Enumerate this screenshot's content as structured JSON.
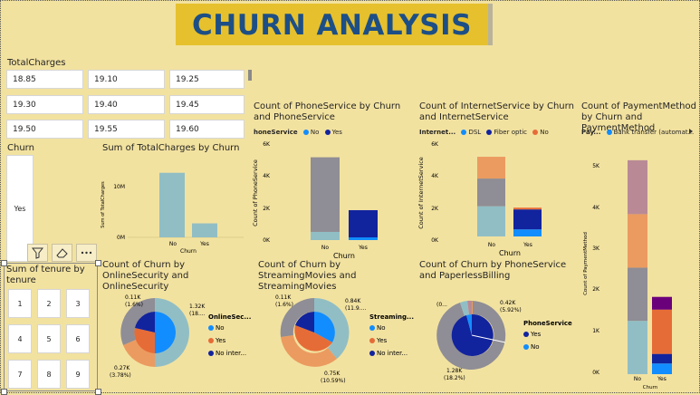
{
  "header": {
    "title": "CHURN ANALYSIS"
  },
  "colors": {
    "teal": "#91bec5",
    "gray": "#8f8d95",
    "orange": "#eb9b60",
    "mauve": "#b98a96",
    "navy": "#12239e",
    "blue": "#118dff",
    "deep_orange": "#e66c37",
    "purple": "#6b007b",
    "title_bg": "#e6c12d",
    "title_fg": "#1d4f86"
  },
  "total_charges": {
    "label": "TotalCharges",
    "values": [
      "18.85",
      "19.10",
      "19.25",
      "19.30",
      "19.40",
      "19.45",
      "19.50",
      "19.55",
      "19.60"
    ]
  },
  "churn_slicer": {
    "label": "Churn",
    "value": "Yes"
  },
  "tenure": {
    "label": "Sum of tenure by tenure",
    "values": [
      "1",
      "2",
      "3",
      "4",
      "5",
      "6",
      "7",
      "8",
      "9"
    ]
  },
  "charts": {
    "sum_charges": {
      "title": "Sum of TotalCharges by Churn",
      "chart_data": {
        "type": "bar",
        "categories": [
          "No",
          "Yes"
        ],
        "values": [
          13200000,
          2860000
        ],
        "xlabel": "Churn",
        "ylabel": "Sum of TotalCharges",
        "yticks": [
          "0M",
          "10M"
        ],
        "ylim": [
          0,
          15000000
        ]
      }
    },
    "phone_service": {
      "title": "Count of PhoneService by Churn and PhoneService",
      "legend_title": "honeService",
      "legend": [
        "No",
        "Yes"
      ],
      "chart_data": {
        "type": "bar",
        "stacked": true,
        "categories": [
          "No",
          "Yes"
        ],
        "series": [
          {
            "name": "No",
            "values": [
              512,
              170
            ]
          },
          {
            "name": "Yes",
            "values": [
              4662,
              1699
            ]
          }
        ],
        "xlabel": "Churn",
        "ylabel": "Count of PhoneService",
        "yticks": [
          "0K",
          "2K",
          "4K",
          "6K"
        ],
        "ylim": [
          0,
          6000
        ]
      }
    },
    "internet_service": {
      "title": "Count of InternetService by Churn and InternetService",
      "legend_title": "Internet...",
      "legend": [
        "DSL",
        "Fiber optic",
        "No"
      ],
      "chart_data": {
        "type": "bar",
        "stacked": true,
        "categories": [
          "No",
          "Yes"
        ],
        "series": [
          {
            "name": "DSL",
            "values": [
              1962,
              459
            ]
          },
          {
            "name": "Fiber optic",
            "values": [
              1799,
              1297
            ]
          },
          {
            "name": "No",
            "values": [
              1413,
              113
            ]
          }
        ],
        "xlabel": "Churn",
        "ylabel": "Count of InternetService",
        "yticks": [
          "0K",
          "2K",
          "4K",
          "6K"
        ],
        "ylim": [
          0,
          6000
        ]
      }
    },
    "payment_method": {
      "title": "Count of PaymentMethod by Churn and PaymentMethod",
      "legend_title": "Pay...",
      "legend": [
        "Bank transfer (automat..."
      ],
      "chart_data": {
        "type": "bar",
        "stacked": true,
        "categories": [
          "No",
          "Yes"
        ],
        "series": [
          {
            "name": "Bank transfer",
            "values": [
              1290,
              258
            ]
          },
          {
            "name": "Credit card",
            "values": [
              1286,
              232
            ]
          },
          {
            "name": "Electronic check",
            "values": [
              1294,
              1071
            ]
          },
          {
            "name": "Mailed check",
            "values": [
              1304,
              308
            ]
          }
        ],
        "xlabel": "Churn",
        "ylabel": "Count of PaymentMethod",
        "yticks": [
          "0K",
          "1K",
          "2K",
          "3K",
          "4K",
          "5K"
        ],
        "ylim": [
          0,
          5500
        ]
      }
    },
    "online_security": {
      "title": "Count of Churn by OnlineSecurity and OnlineSecurity",
      "legend_title": "OnlineSec...",
      "legend": [
        "No",
        "Yes",
        "No inter..."
      ],
      "labels": [
        {
          "value": "0.11K",
          "pct": "(1.6%)"
        },
        {
          "value": "1.32K",
          "pct": "(18...."
        },
        {
          "value": "0.27K",
          "pct": "(3.78%)"
        }
      ]
    },
    "streaming_movies": {
      "title": "Count of Churn by StreamingMovies and StreamingMovies",
      "legend_title": "Streaming...",
      "legend": [
        "No",
        "Yes",
        "No inter..."
      ],
      "labels": [
        {
          "value": "0.11K",
          "pct": "(1.6%)"
        },
        {
          "value": "0.84K",
          "pct": "(11.9...."
        },
        {
          "value": "0.75K",
          "pct": "(10.59%)"
        }
      ]
    },
    "phone_paperless": {
      "title": "Count of Churn by PhoneService and PaperlessBilling",
      "legend_title": "PhoneService",
      "legend": [
        "Yes",
        "No"
      ],
      "labels": [
        {
          "value": "(0...",
          "pct": ""
        },
        {
          "value": "0.42K",
          "pct": "(5.92%)"
        },
        {
          "value": "1.28K",
          "pct": "(18.2%)"
        }
      ]
    }
  }
}
